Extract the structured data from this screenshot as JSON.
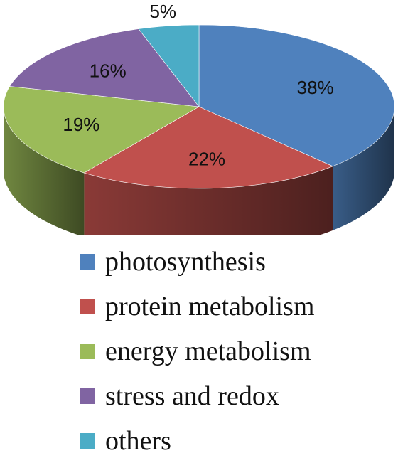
{
  "chart_data": {
    "type": "pie",
    "categories": [
      "photosynthesis",
      "protein metabolism",
      "energy metabolism",
      "stress and redox",
      "others"
    ],
    "values": [
      38,
      22,
      19,
      16,
      5
    ],
    "labels": [
      "38%",
      "22%",
      "19%",
      "16%",
      "5%"
    ],
    "colors": [
      "#4F81BD",
      "#C0504D",
      "#9BBB59",
      "#8064A2",
      "#4BACC6"
    ],
    "style": "3d",
    "legend": "bottom"
  }
}
